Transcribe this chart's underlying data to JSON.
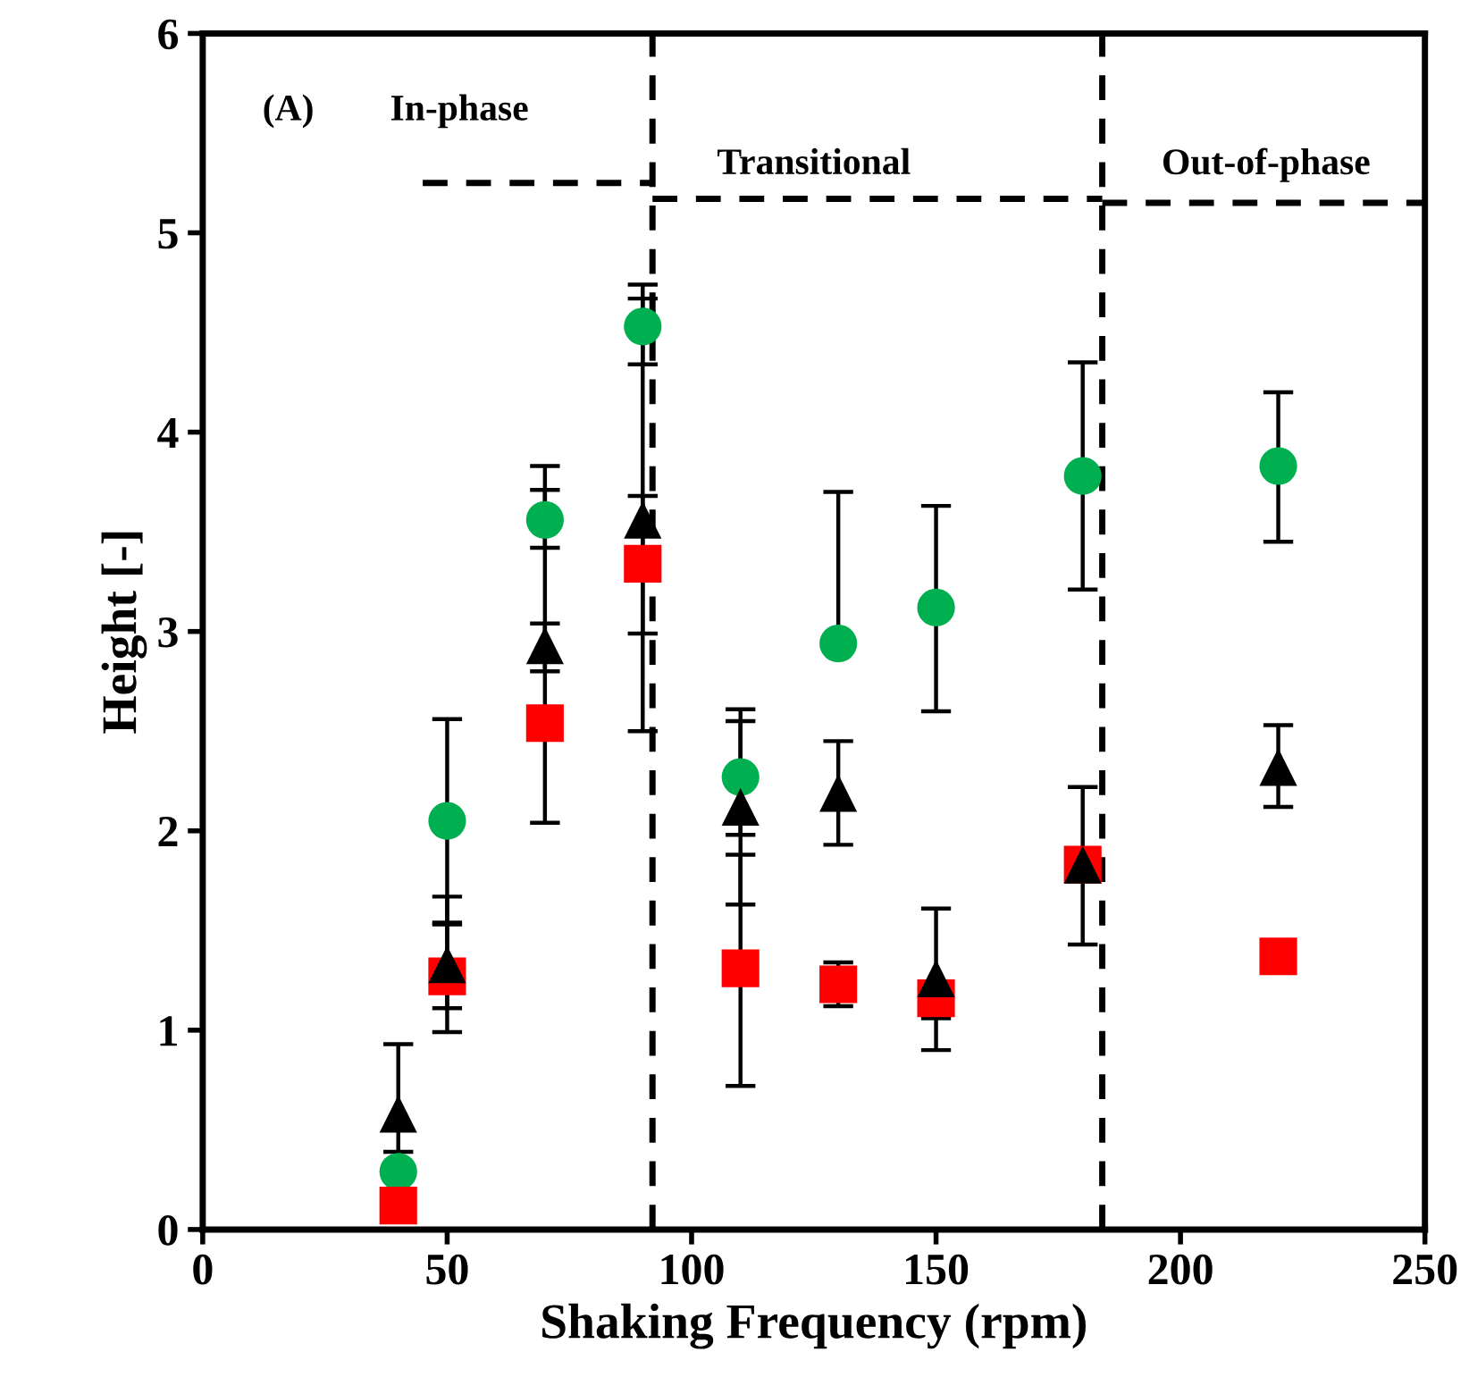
{
  "chart_data": {
    "type": "scatter",
    "xlabel": "Shaking Frequency (rpm)",
    "ylabel": "Height [-]",
    "x": [
      40,
      50,
      70,
      90,
      110,
      130,
      150,
      180,
      220
    ],
    "series": [
      {
        "color": "#00b050",
        "marker": "circle",
        "values": [
          0.29,
          2.05,
          3.56,
          4.53,
          2.27,
          2.94,
          3.12,
          3.78,
          3.83
        ],
        "errors": [
          null,
          [
            1.54,
            2.56
          ],
          [
            3.42,
            3.83
          ],
          [
            4.34,
            4.74
          ],
          [
            1.98,
            2.55
          ],
          [
            2.94,
            3.7
          ],
          [
            2.6,
            3.63
          ],
          [
            3.21,
            4.35
          ],
          [
            3.45,
            4.2
          ]
        ]
      },
      {
        "color": "#ff0000",
        "marker": "square",
        "values": [
          0.12,
          1.27,
          2.54,
          3.34,
          1.31,
          1.23,
          1.16,
          1.83,
          1.37
        ],
        "errors": [
          null,
          [
            0.99,
            1.67
          ],
          [
            2.04,
            3.04
          ],
          [
            2.99,
            3.68
          ],
          [
            0.72,
            1.88
          ],
          [
            1.12,
            1.34
          ],
          [
            1.06,
            1.16
          ],
          null,
          null
        ]
      },
      {
        "color": "#000000",
        "marker": "triangle",
        "values": [
          0.58,
          1.33,
          2.93,
          3.56,
          2.12,
          2.19,
          1.26,
          1.83,
          2.32
        ],
        "errors": [
          [
            0.39,
            0.93
          ],
          [
            1.11,
            1.53
          ],
          [
            2.8,
            3.71
          ],
          [
            2.5,
            4.67
          ],
          [
            1.63,
            2.61
          ],
          [
            1.93,
            2.45
          ],
          [
            0.9,
            1.61
          ],
          [
            1.43,
            2.22
          ],
          [
            2.12,
            2.53
          ]
        ]
      },
      {
        "type": "line",
        "color": "#000000",
        "line_style": "dashed",
        "marker": "none",
        "x": [
          45,
          92
        ],
        "values": [
          5.25,
          5.25
        ]
      },
      {
        "type": "line",
        "color": "#000000",
        "line_style": "dashed",
        "marker": "none",
        "x": [
          92,
          184
        ],
        "values": [
          5.17,
          5.17
        ]
      },
      {
        "type": "line",
        "color": "#000000",
        "line_style": "dashed",
        "marker": "none",
        "x": [
          184,
          250
        ],
        "values": [
          5.15,
          5.15
        ]
      }
    ],
    "ref_lines": [
      {
        "axis": "x",
        "value": 92,
        "color": "#000000",
        "line_style": "dashed"
      },
      {
        "axis": "x",
        "value": 184,
        "color": "#000000",
        "line_style": "dashed"
      }
    ],
    "annotations": [
      "(A)",
      "In-phase",
      "Transitional",
      "Out-of-phase"
    ],
    "xlim": [
      0,
      250
    ],
    "xticks": [
      0,
      50,
      100,
      150,
      200,
      250
    ],
    "ylim": [
      0,
      6
    ],
    "yticks": [
      0,
      1,
      2,
      3,
      4,
      5,
      6
    ],
    "grid": false,
    "legend": false
  }
}
